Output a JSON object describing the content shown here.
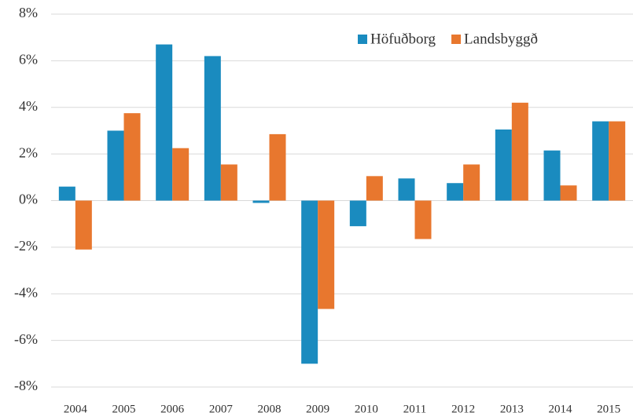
{
  "chart_data": {
    "type": "bar",
    "categories": [
      "2004",
      "2005",
      "2006",
      "2007",
      "2008",
      "2009",
      "2010",
      "2011",
      "2012",
      "2013",
      "2014",
      "2015"
    ],
    "series": [
      {
        "name": "Höfuðborg",
        "color": "#1a8bbf",
        "values": [
          0.6,
          3.0,
          6.7,
          6.2,
          -0.1,
          -7.0,
          -1.1,
          0.95,
          0.75,
          3.05,
          2.15,
          3.4
        ]
      },
      {
        "name": "Landsbyggð",
        "color": "#e8772e",
        "values": [
          -2.1,
          3.75,
          2.25,
          1.55,
          2.85,
          -4.65,
          1.05,
          -1.65,
          1.55,
          4.2,
          0.65,
          3.4
        ]
      }
    ],
    "ylim": [
      -8,
      8
    ],
    "yticks": [
      {
        "value": -8,
        "label": "-8%"
      },
      {
        "value": -6,
        "label": "-6%"
      },
      {
        "value": -4,
        "label": "-4%"
      },
      {
        "value": -2,
        "label": "-2%"
      },
      {
        "value": 0,
        "label": "0%"
      },
      {
        "value": 2,
        "label": "2%"
      },
      {
        "value": 4,
        "label": "4%"
      },
      {
        "value": 6,
        "label": "6%"
      },
      {
        "value": 8,
        "label": "8%"
      }
    ],
    "grid": true,
    "legend": "top-right"
  }
}
